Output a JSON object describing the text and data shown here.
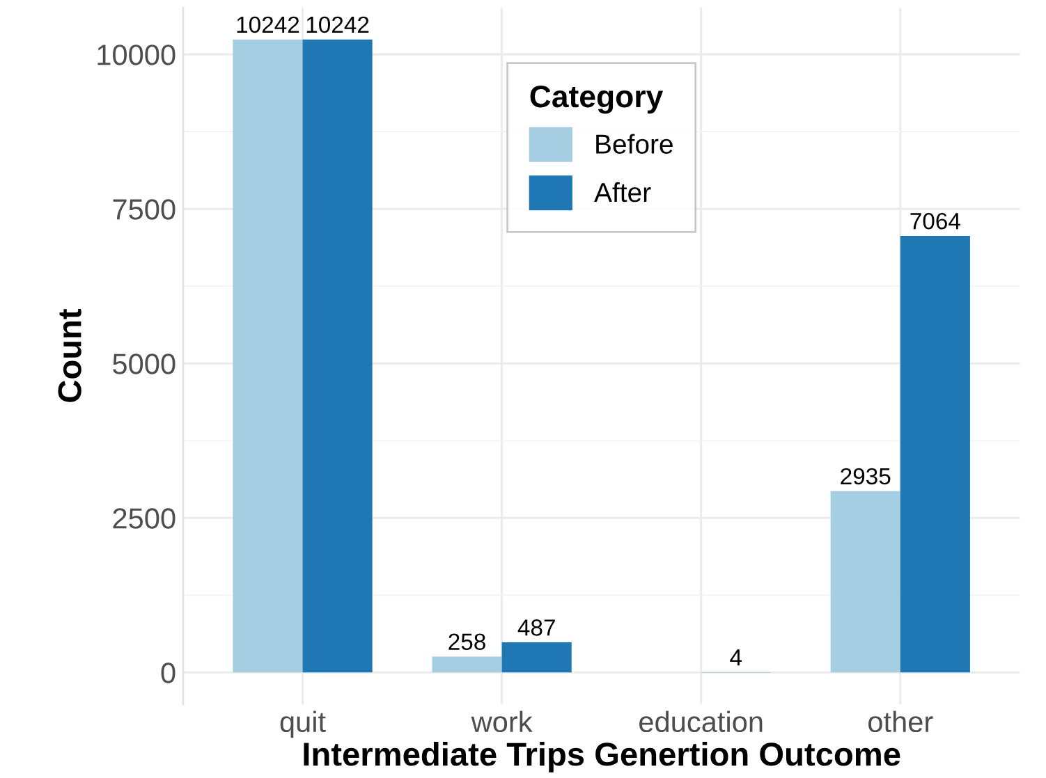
{
  "chart_data": {
    "type": "bar",
    "xlabel": "Intermediate Trips Genertion Outcome",
    "ylabel": "Count",
    "legend_title": "Category",
    "categories": [
      "quit",
      "work",
      "education",
      "other"
    ],
    "series": [
      {
        "name": "Before",
        "color": "#a6cee3",
        "values": [
          10242,
          258,
          0,
          2935
        ],
        "value_labels": [
          "10242",
          "258",
          null,
          "2935"
        ]
      },
      {
        "name": "After",
        "color": "#1f78b4",
        "values": [
          10242,
          487,
          4,
          7064
        ],
        "value_labels": [
          "10242",
          "487",
          "4",
          "7064"
        ]
      }
    ],
    "ylim": [
      -512,
      10754
    ],
    "yticks": [
      0,
      2500,
      5000,
      7500,
      10000
    ],
    "grid": true,
    "legend": "top"
  }
}
